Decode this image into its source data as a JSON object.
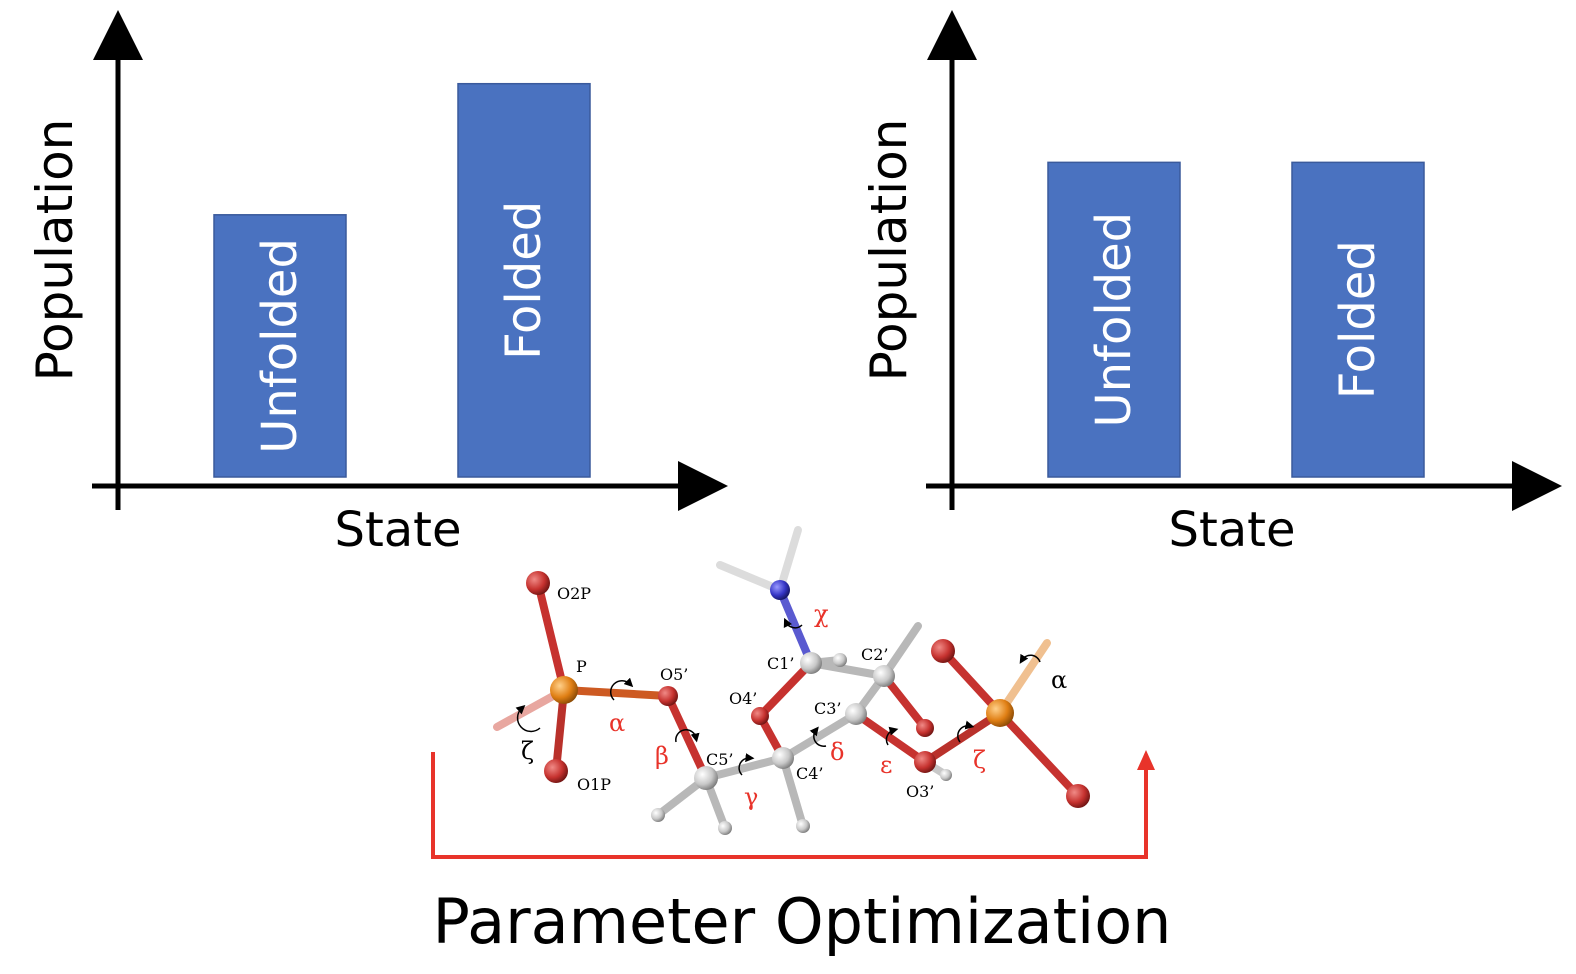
{
  "colors": {
    "bar": "#4a72c0",
    "axis": "#000000",
    "bracket": "#e8332a",
    "phosphorus": "#e07f14",
    "oxygen": "#c6322f",
    "carbon": "#c8c8c8",
    "nitrogen": "#3535c6",
    "hydrogen": "#e8e8e8"
  },
  "chart_data": [
    {
      "type": "bar",
      "xlabel": "State",
      "ylabel": "Population",
      "categories": [
        "Unfolded",
        "Folded"
      ],
      "values": [
        0.6,
        0.9
      ],
      "ylim": [
        0,
        1
      ],
      "grid": false
    },
    {
      "type": "bar",
      "xlabel": "State",
      "ylabel": "Population",
      "categories": [
        "Unfolded",
        "Folded"
      ],
      "values": [
        0.72,
        0.72
      ],
      "ylim": [
        0,
        1
      ],
      "grid": false
    }
  ],
  "molecule": {
    "atom_labels": {
      "o2p": "O2P",
      "p": "P",
      "o5": "O5’",
      "o1p": "O1P",
      "o4": "O4’",
      "c5": "C5’",
      "c4": "C4’",
      "c1": "C1’",
      "c2": "C2’",
      "c3": "C3’",
      "o3": "O3’"
    },
    "dihedral_labels": {
      "chi": "χ",
      "zeta_left": "ζ",
      "alpha_left": "α",
      "beta": "β",
      "gamma": "γ",
      "delta": "δ",
      "epsilon": "ε",
      "zeta_right": "ζ",
      "alpha_right": "α"
    }
  },
  "caption": "Parameter Optimization"
}
